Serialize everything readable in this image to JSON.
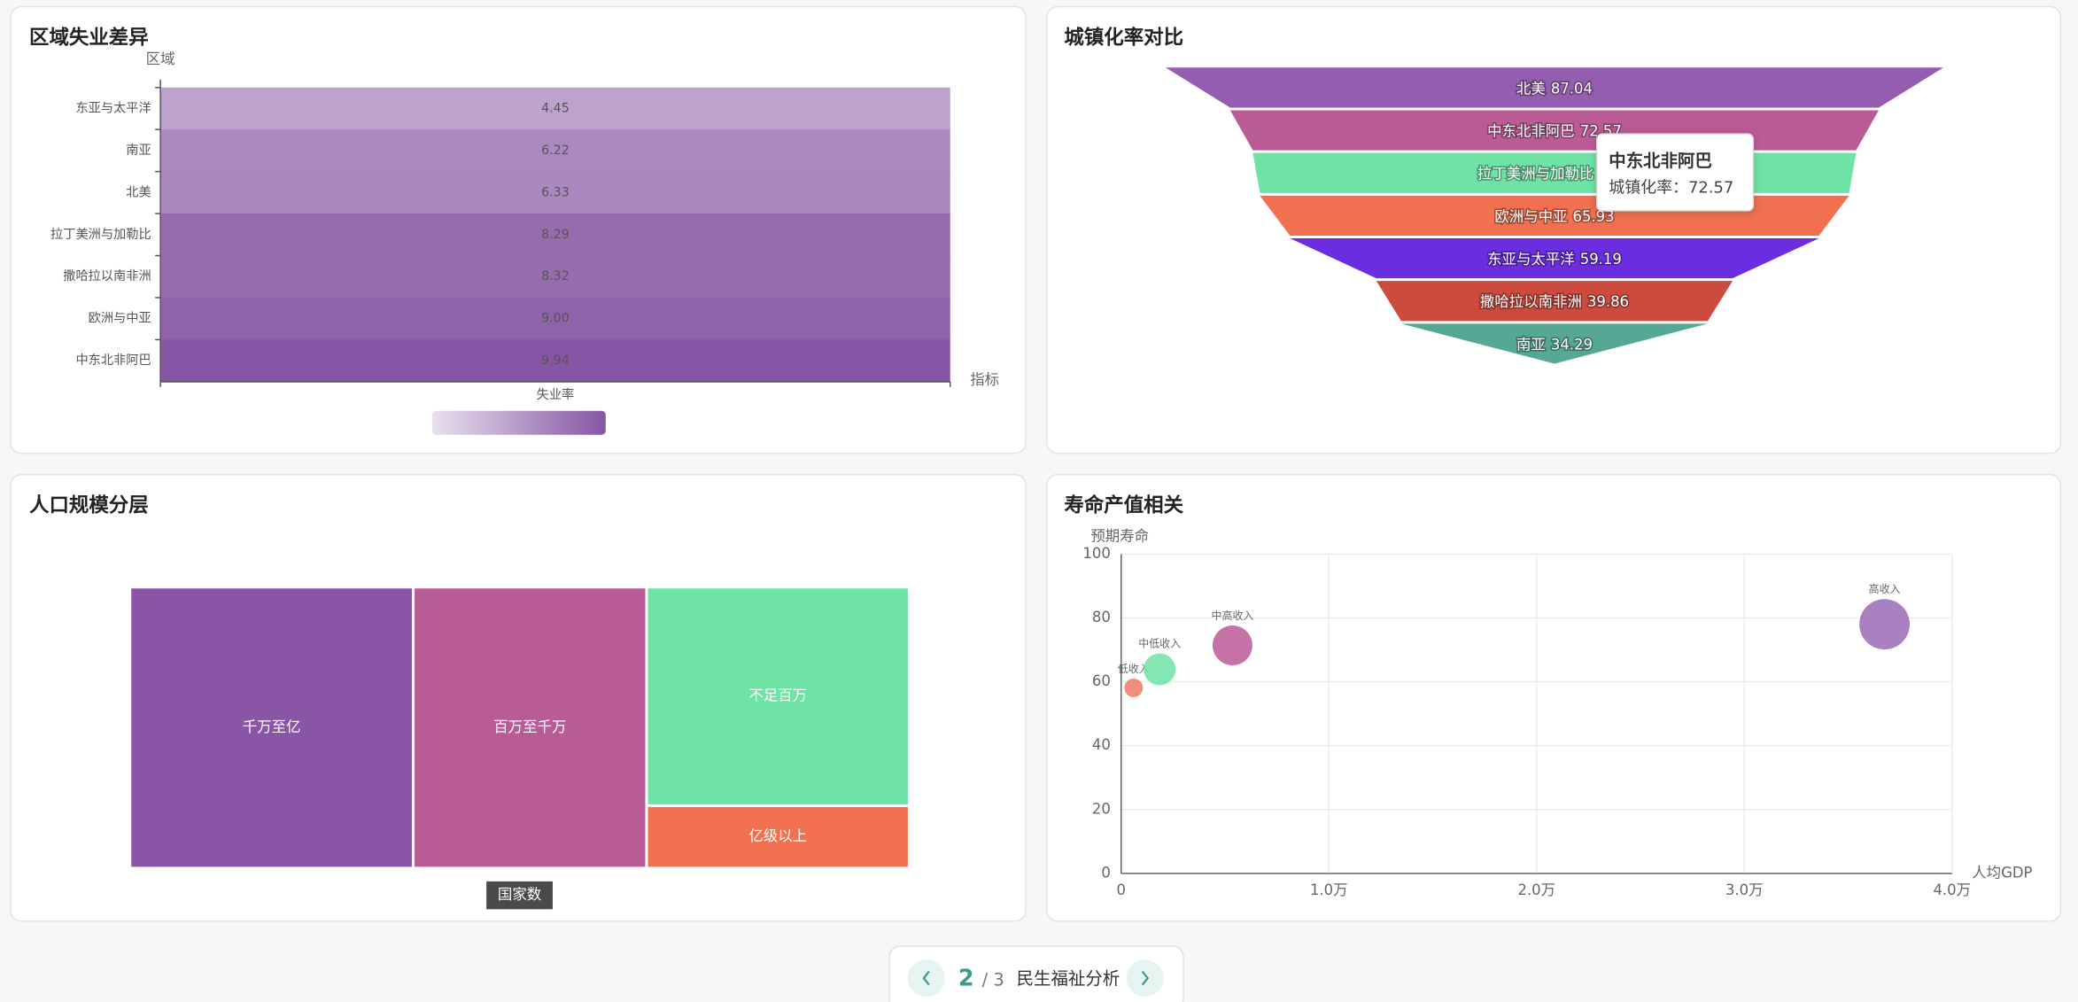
{
  "chart_data": [
    {
      "type": "heatmap",
      "title": "区域失业差异",
      "y_axis_name": "区域",
      "x_axis_name": "指标",
      "x_categories": [
        "失业率"
      ],
      "categories": [
        "东亚与太平洋",
        "南亚",
        "北美",
        "拉丁美洲与加勒比",
        "撒哈拉以南非洲",
        "欧洲与中亚",
        "中东北非阿巴"
      ],
      "values": [
        4.45,
        6.22,
        6.33,
        8.29,
        8.32,
        9.0,
        9.94
      ],
      "value_labels": [
        "4.45",
        "6.22",
        "6.33",
        "8.29",
        "8.32",
        "9.00",
        "9.94"
      ],
      "colors": [
        "#e8e0ee",
        "#8655a3"
      ]
    },
    {
      "type": "funnel",
      "title": "城镇化率对比",
      "categories": [
        "北美",
        "中东北非阿巴",
        "拉丁美洲与加勒比",
        "欧洲与中亚",
        "东亚与太平洋",
        "撒哈拉以南非洲",
        "南亚"
      ],
      "values": [
        87.04,
        72.57,
        67.5,
        65.93,
        59.19,
        39.86,
        34.29
      ],
      "colors": [
        "#955db0",
        "#bb5b96",
        "#6fe3a6",
        "#f07050",
        "#6a2de0",
        "#cc4a3e",
        "#56a894"
      ],
      "tooltip": {
        "title": "中东北非阿巴",
        "text": "城镇化率：72.57"
      }
    },
    {
      "type": "treemap",
      "title": "人口规模分层",
      "series_name": "国家数",
      "categories": [
        "千万至亿",
        "百万至千万",
        "不足百万",
        "亿级以上"
      ],
      "values": [
        68,
        56,
        49,
        14
      ],
      "colors": [
        "#8a55a5",
        "#b85c97",
        "#6fe3a6",
        "#f07050"
      ]
    },
    {
      "type": "scatter",
      "title": "寿命产值相关",
      "x_axis_name": "人均GDP",
      "y_axis_name": "预期寿命",
      "xlim": [
        0,
        40000
      ],
      "ylim": [
        0,
        100
      ],
      "xticks": [
        0,
        {
          "value": 10000,
          "label": "1.0万"
        },
        {
          "value": 20000,
          "label": "2.0万"
        },
        {
          "value": 30000,
          "label": "3.0万"
        },
        {
          "value": 40000,
          "label": "4.0万"
        }
      ],
      "yticks": [
        0,
        20,
        40,
        60,
        80,
        100
      ],
      "grid": true,
      "series": [
        {
          "name": "低收入",
          "color": "#f07a66",
          "x": [
            600
          ],
          "values": [
            58.1
          ],
          "sizes": [
            7
          ]
        },
        {
          "name": "中低收入",
          "color": "#6fe3a6",
          "x": [
            1850
          ],
          "values": [
            63.9
          ],
          "sizes": [
            12
          ]
        },
        {
          "name": "中高收入",
          "color": "#bb5b96",
          "x": [
            5360
          ],
          "values": [
            71.4
          ],
          "sizes": [
            15
          ]
        },
        {
          "name": "高收入",
          "color": "#9b6bb5",
          "x": [
            36750
          ],
          "values": [
            78.0
          ],
          "sizes": [
            19
          ]
        }
      ]
    }
  ],
  "pager": {
    "current": "2",
    "total": "/ 3",
    "title": "民生福祉分析"
  }
}
